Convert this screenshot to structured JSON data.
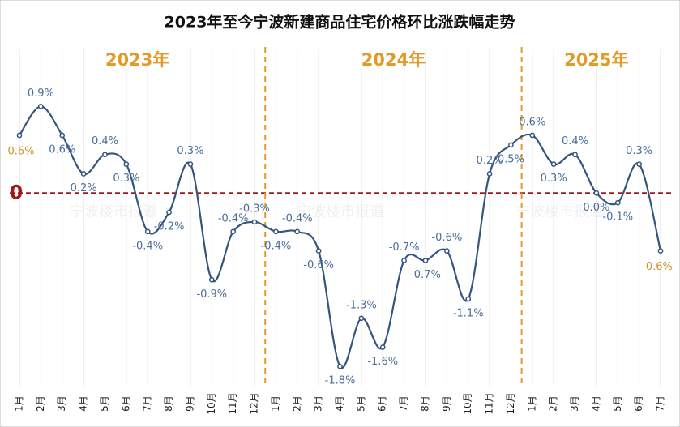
{
  "chart_data": {
    "type": "line",
    "title": "2023年至今宁波新建商品住宅价格环比涨跌幅走势",
    "watermark": "宁波楼市报道",
    "groups": [
      {
        "label": "2023年",
        "start": 0,
        "end": 11
      },
      {
        "label": "2024年",
        "start": 12,
        "end": 23
      },
      {
        "label": "2025年",
        "start": 24,
        "end": 30
      }
    ],
    "categories": [
      "1月",
      "2月",
      "3月",
      "4月",
      "5月",
      "6月",
      "7月",
      "8月",
      "9月",
      "10月",
      "11月",
      "12月",
      "1月",
      "2月",
      "3月",
      "4月",
      "5月",
      "6月",
      "7月",
      "8月",
      "9月",
      "10月",
      "11月",
      "12月",
      "1月",
      "2月",
      "3月",
      "4月",
      "5月",
      "6月",
      "7月"
    ],
    "series": [
      {
        "name": "环比涨跌幅",
        "color": "#34557e",
        "values": [
          0.6,
          0.9,
          0.6,
          0.2,
          0.4,
          0.3,
          -0.4,
          -0.2,
          0.3,
          -0.9,
          -0.4,
          -0.3,
          -0.4,
          -0.4,
          -0.6,
          -1.8,
          -1.3,
          -1.6,
          -0.7,
          -0.7,
          -0.6,
          -1.1,
          0.2,
          0.5,
          0.6,
          0.3,
          0.4,
          0.0,
          -0.1,
          0.3,
          -0.6
        ],
        "value_labels": [
          "0.6%",
          "0.9%",
          "0.6%",
          "0.2%",
          "0.4%",
          "0.3%",
          "-0.4%",
          "-0.2%",
          "0.3%",
          "-0.9%",
          "-0.4%",
          "-0.3%",
          "-0.4%",
          "-0.4%",
          "-0.6%",
          "-1.8%",
          "-1.3%",
          "-1.6%",
          "-0.7%",
          "-0.7%",
          "-0.6%",
          "-1.1%",
          "0.2%",
          "0.5%",
          "0.6%",
          "0.3%",
          "0.4%",
          "0.0%",
          "-0.1%",
          "0.3%",
          "-0.6%"
        ]
      }
    ],
    "ylim": [
      -2,
      1.5
    ],
    "yticks": [
      0
    ],
    "grid": true,
    "label_color": "#4a6e9c",
    "highlight_color": "#d4902a",
    "zero_color": "#a01818"
  }
}
